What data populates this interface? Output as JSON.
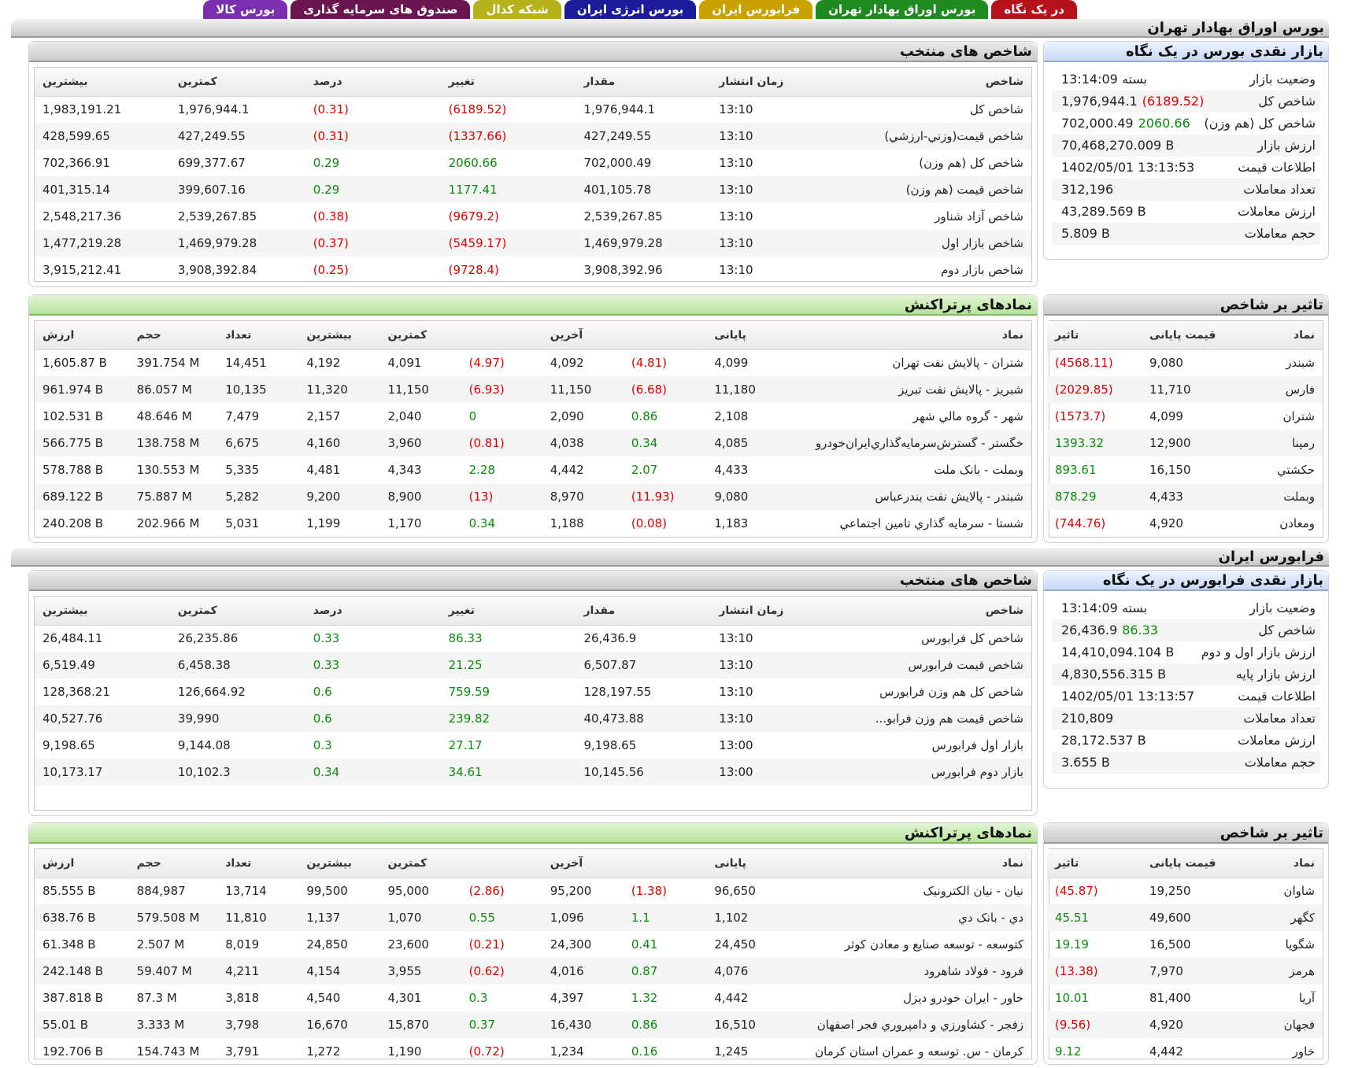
{
  "tabs": [
    {
      "label": "در یک نگاه",
      "color": "#b5121b"
    },
    {
      "label": "بورس اوراق بهادار تهران",
      "color": "#1f8a1f"
    },
    {
      "label": "فرابورس ایران",
      "color": "#c9a200"
    },
    {
      "label": "بورس انرژی ایران",
      "color": "#1c1c9a"
    },
    {
      "label": "شبکه کدال",
      "color": "#b8b21a"
    },
    {
      "label": "صندوق های سرمایه گذاری",
      "color": "#6b1550"
    },
    {
      "label": "بورس کالا",
      "color": "#7a2fae"
    }
  ],
  "tse": {
    "section_title": "بورس اوراق بهادار تهران",
    "glance": {
      "title": "بازار نقدی بورس در یک نگاه",
      "rows": [
        {
          "label": "وضعیت بازار",
          "value": "بسته 13:14:09",
          "change": "",
          "tone": ""
        },
        {
          "label": "شاخص کل",
          "value": "1,976,944.1",
          "change": "(6189.52)",
          "tone": "neg"
        },
        {
          "label": "شاخص کل (هم وزن)",
          "value": "702,000.49",
          "change": "2060.66",
          "tone": "pos"
        },
        {
          "label": "ارزش بازار",
          "value": "70,468,270.009 B",
          "change": "",
          "tone": ""
        },
        {
          "label": "اطلاعات قیمت",
          "value": "1402/05/01 13:13:53",
          "change": "",
          "tone": ""
        },
        {
          "label": "تعداد معاملات",
          "value": "312,196",
          "change": "",
          "tone": ""
        },
        {
          "label": "ارزش معاملات",
          "value": "43,289.569 B",
          "change": "",
          "tone": ""
        },
        {
          "label": "حجم معاملات",
          "value": "5.809 B",
          "change": "",
          "tone": ""
        }
      ]
    },
    "indices": {
      "title": "شاخص های منتخب",
      "headers": [
        "شاخص",
        "زمان انتشار",
        "مقدار",
        "تغییر",
        "درصد",
        "کمترین",
        "بیشترین"
      ],
      "rows": [
        [
          "شاخص کل",
          "13:10",
          "1,976,944.1",
          "(6189.52)",
          "(0.31)",
          "1,976,944.1",
          "1,983,191.21"
        ],
        [
          "شاخص قیمت(وزني-ارزشي)",
          "13:10",
          "427,249.55",
          "(1337.66)",
          "(0.31)",
          "427,249.55",
          "428,599.65"
        ],
        [
          "شاخص کل (هم وزن)",
          "13:10",
          "702,000.49",
          "2060.66",
          "0.29",
          "699,377.67",
          "702,366.91"
        ],
        [
          "شاخص قیمت (هم وزن)",
          "13:10",
          "401,105.78",
          "1177.41",
          "0.29",
          "399,607.16",
          "401,315.14"
        ],
        [
          "شاخص آزاد شناور",
          "13:10",
          "2,539,267.85",
          "(9679.2)",
          "(0.38)",
          "2,539,267.85",
          "2,548,217.36"
        ],
        [
          "شاخص بازار اول",
          "13:10",
          "1,469,979.28",
          "(5459.17)",
          "(0.37)",
          "1,469,979.28",
          "1,477,219.28"
        ],
        [
          "شاخص بازار دوم",
          "13:10",
          "3,908,392.96",
          "(9728.4)",
          "(0.25)",
          "3,908,392.84",
          "3,915,212.41"
        ]
      ]
    },
    "impact": {
      "title": "تاثیر بر شاخص",
      "headers": [
        "نماد",
        "قیمت پایانی",
        "تاثیر"
      ],
      "rows": [
        [
          "شبندر",
          "9,080",
          "(4568.11)"
        ],
        [
          "فارس",
          "11,710",
          "(2029.85)"
        ],
        [
          "شتران",
          "4,099",
          "(1573.7)"
        ],
        [
          "رمپنا",
          "12,900",
          "1393.32"
        ],
        [
          "حکشتي",
          "16,150",
          "893.61"
        ],
        [
          "وبملت",
          "4,433",
          "878.29"
        ],
        [
          "ومعادن",
          "4,920",
          "(744.76)"
        ]
      ]
    },
    "active": {
      "title": "نمادهای پرتراکنش",
      "headers": [
        "نماد",
        "پایانی",
        "",
        "آخرین",
        "",
        "کمترین",
        "بیشترین",
        "تعداد",
        "حجم",
        "ارزش"
      ],
      "rows": [
        [
          "شتران - پالايش نفت تهران",
          "4,099",
          "(4.81)",
          "4,092",
          "(4.97)",
          "4,091",
          "4,192",
          "14,451",
          "391.754 M",
          "1,605.87 B"
        ],
        [
          "شبريز - پالايش نفت تبريز",
          "11,180",
          "(6.68)",
          "11,150",
          "(6.93)",
          "11,150",
          "11,320",
          "10,135",
          "86.057 M",
          "961.974 B"
        ],
        [
          "شهر - گروه مالي شهر",
          "2,108",
          "0.86",
          "2,090",
          "0",
          "2,040",
          "2,157",
          "7,479",
          "48.646 M",
          "102.531 B"
        ],
        [
          "خگستر - گسترش‌سرمايه‌گذاري‌ايران‌خودرو",
          "4,085",
          "0.34",
          "4,038",
          "(0.81)",
          "3,960",
          "4,160",
          "6,675",
          "138.758 M",
          "566.775 B"
        ],
        [
          "وبملت - بانک ملت",
          "4,433",
          "2.07",
          "4,442",
          "2.28",
          "4,343",
          "4,481",
          "5,335",
          "130.553 M",
          "578.788 B"
        ],
        [
          "شبندر - پالايش نفت بندرعباس",
          "9,080",
          "(11.93)",
          "8,970",
          "(13)",
          "8,900",
          "9,200",
          "5,282",
          "75.887 M",
          "689.122 B"
        ],
        [
          "شستا - سرمايه گذاري تامين اجتماعي",
          "1,183",
          "(0.08)",
          "1,188",
          "0.34",
          "1,170",
          "1,199",
          "5,031",
          "202.966 M",
          "240.208 B"
        ]
      ]
    }
  },
  "ifb": {
    "section_title": "فرابورس ایران",
    "glance": {
      "title": "بازار نقدی فرابورس در یک نگاه",
      "rows": [
        {
          "label": "وضعیت بازار",
          "value": "بسته 13:14:09",
          "change": "",
          "tone": ""
        },
        {
          "label": "شاخص کل",
          "value": "26,436.9",
          "change": "86.33",
          "tone": "pos"
        },
        {
          "label": "ارزش بازار اول و دوم",
          "value": "14,410,094.104 B",
          "change": "",
          "tone": ""
        },
        {
          "label": "ارزش بازار پایه",
          "value": "4,830,556.315 B",
          "change": "",
          "tone": ""
        },
        {
          "label": "اطلاعات قیمت",
          "value": "1402/05/01 13:13:57",
          "change": "",
          "tone": ""
        },
        {
          "label": "تعداد معاملات",
          "value": "210,809",
          "change": "",
          "tone": ""
        },
        {
          "label": "ارزش معاملات",
          "value": "28,172.537 B",
          "change": "",
          "tone": ""
        },
        {
          "label": "حجم معاملات",
          "value": "3.655 B",
          "change": "",
          "tone": ""
        }
      ]
    },
    "indices": {
      "title": "شاخص های منتخب",
      "headers": [
        "شاخص",
        "زمان انتشار",
        "مقدار",
        "تغییر",
        "درصد",
        "کمترین",
        "بیشترین"
      ],
      "rows": [
        [
          "شاخص کل فرابورس",
          "13:10",
          "26,436.9",
          "86.33",
          "0.33",
          "26,235.86",
          "26,484.11"
        ],
        [
          "شاخص قیمت فرابورس",
          "13:10",
          "6,507.87",
          "21.25",
          "0.33",
          "6,458.38",
          "6,519.49"
        ],
        [
          "شاخص کل هم وزن فرابورس",
          "13:10",
          "128,197.55",
          "759.59",
          "0.6",
          "126,664.92",
          "128,368.21"
        ],
        [
          "شاخص قیمت هم وزن فرابو...",
          "13:10",
          "40,473.88",
          "239.82",
          "0.6",
          "39,990",
          "40,527.76"
        ],
        [
          "بازار اول فرابورس",
          "13:00",
          "9,198.65",
          "27.17",
          "0.3",
          "9,144.08",
          "9,198.65"
        ],
        [
          "بازار دوم فرابورس",
          "13:00",
          "10,145.56",
          "34.61",
          "0.34",
          "10,102.3",
          "10,173.17"
        ]
      ]
    },
    "impact": {
      "title": "تاثیر بر شاخص",
      "headers": [
        "نماد",
        "قیمت پایانی",
        "تاثیر"
      ],
      "rows": [
        [
          "شاوان",
          "19,250",
          "(45.87)"
        ],
        [
          "کگهر",
          "49,600",
          "45.51"
        ],
        [
          "شگویا",
          "16,500",
          "19.19"
        ],
        [
          "هرمز",
          "7,970",
          "(13.38)"
        ],
        [
          "آریا",
          "81,400",
          "10.01"
        ],
        [
          "فجهان",
          "4,920",
          "(9.56)"
        ],
        [
          "خاور",
          "4,442",
          "9.12"
        ]
      ]
    },
    "active": {
      "title": "نمادهای پرتراکنش",
      "headers": [
        "نماد",
        "پایانی",
        "",
        "آخرین",
        "",
        "کمترین",
        "بیشترین",
        "تعداد",
        "حجم",
        "ارزش"
      ],
      "rows": [
        [
          "نيان - نيان الكترونيک",
          "96,650",
          "(1.38)",
          "95,200",
          "(2.86)",
          "95,000",
          "99,500",
          "13,714",
          "884,987",
          "85.555 B"
        ],
        [
          "دي - بانک دي",
          "1,102",
          "1.1",
          "1,096",
          "0.55",
          "1,070",
          "1,137",
          "11,810",
          "579.508 M",
          "638.76 B"
        ],
        [
          "كتوسعه - توسعه صنايع و معادن کوثر",
          "24,450",
          "0.41",
          "24,300",
          "(0.21)",
          "23,600",
          "24,850",
          "8,019",
          "2.507 M",
          "61.348 B"
        ],
        [
          "فرود - فولاد شاهرود",
          "4,076",
          "0.87",
          "4,016",
          "(0.62)",
          "3,955",
          "4,154",
          "4,211",
          "59.407 M",
          "242.148 B"
        ],
        [
          "خاور - ايران خودرو ديزل",
          "4,442",
          "1.32",
          "4,397",
          "0.3",
          "4,301",
          "4,540",
          "3,818",
          "87.3 M",
          "387.818 B"
        ],
        [
          "زفجر - کشاورزي و دامپروري فجر اصفهان",
          "16,510",
          "0.86",
          "16,430",
          "0.37",
          "15,870",
          "16,670",
          "3,798",
          "3.333 M",
          "55.01 B"
        ],
        [
          "كرمان - س. توسعه و عمران استان كرمان",
          "1,245",
          "0.16",
          "1,234",
          "(0.72)",
          "1,190",
          "1,272",
          "3,791",
          "154.743 M",
          "192.706 B"
        ]
      ]
    }
  }
}
